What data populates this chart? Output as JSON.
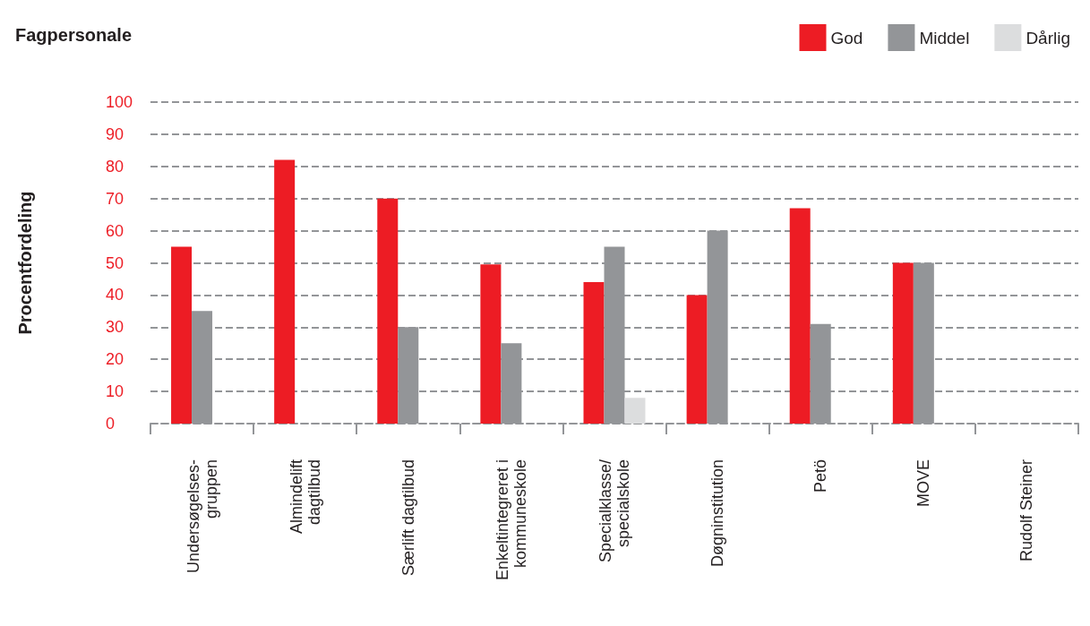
{
  "chart_data": {
    "type": "bar",
    "title": "Fagpersonale",
    "ylabel": "Procentfordeling",
    "categories": [
      "Undersøgelses-\ngruppen",
      "Almindelift\ndagtilbud",
      "Særlift dagtilbud",
      "Enkeltintegreret i\nkommuneskole",
      "Specialklasse/\nspecialskole",
      "Døgninstitution",
      "Petö",
      "MOVE",
      "Rudolf Steiner"
    ],
    "series": [
      {
        "name": "God",
        "color": "#ed1c24",
        "values": [
          55,
          82,
          70,
          49.5,
          44,
          40,
          67,
          50,
          null
        ]
      },
      {
        "name": "Middel",
        "color": "#939598",
        "values": [
          35,
          null,
          30,
          25,
          55,
          60,
          31,
          50,
          null
        ]
      },
      {
        "name": "Dårlig",
        "color": "#dcddde",
        "values": [
          null,
          null,
          null,
          null,
          8,
          null,
          null,
          null,
          null
        ]
      }
    ],
    "ylim": [
      0,
      100
    ],
    "yticks": [
      0,
      10,
      20,
      30,
      40,
      50,
      60,
      70,
      80,
      90,
      100
    ],
    "grid": "y",
    "legend": "top right"
  }
}
